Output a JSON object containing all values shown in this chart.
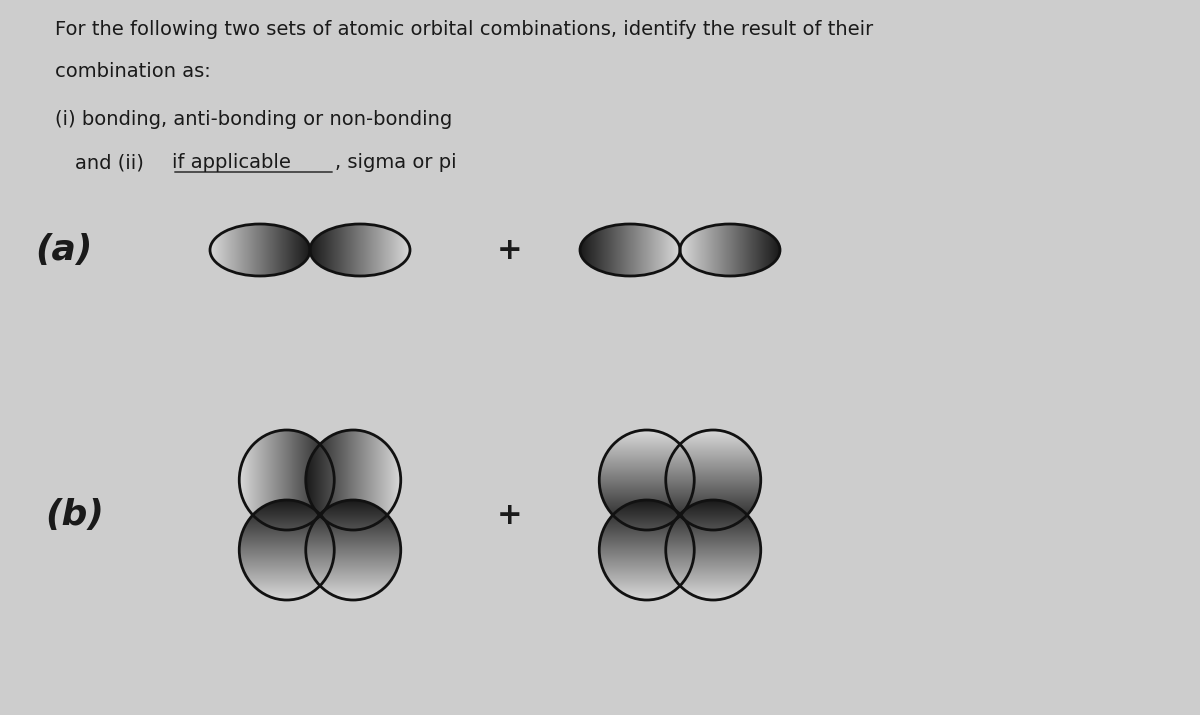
{
  "background_color": "#cdcdcd",
  "title_line1": "For the following two sets of atomic orbital combinations, identify the result of their",
  "title_line2": "combination as:",
  "line1": "(i) bonding, anti-bonding or non-bonding",
  "line2_pre": "and (ii) ",
  "line2_ul": "if applicable",
  "line2_post": ", sigma or pi",
  "label_a": "(a)",
  "label_b": "(b)",
  "plus_sign": "+",
  "text_color": "#1a1a1a",
  "orbital_outline_color": "#111111",
  "orbital_dark_fill": "#2a2a2a",
  "orbital_mid_fill": "#888888",
  "orbital_light_fill": "#cccccc",
  "orbital_white_fill": "#e8e8e8",
  "lw": 2.0,
  "title_fontsize": 14,
  "label_fontsize": 26,
  "plus_fontsize": 22
}
